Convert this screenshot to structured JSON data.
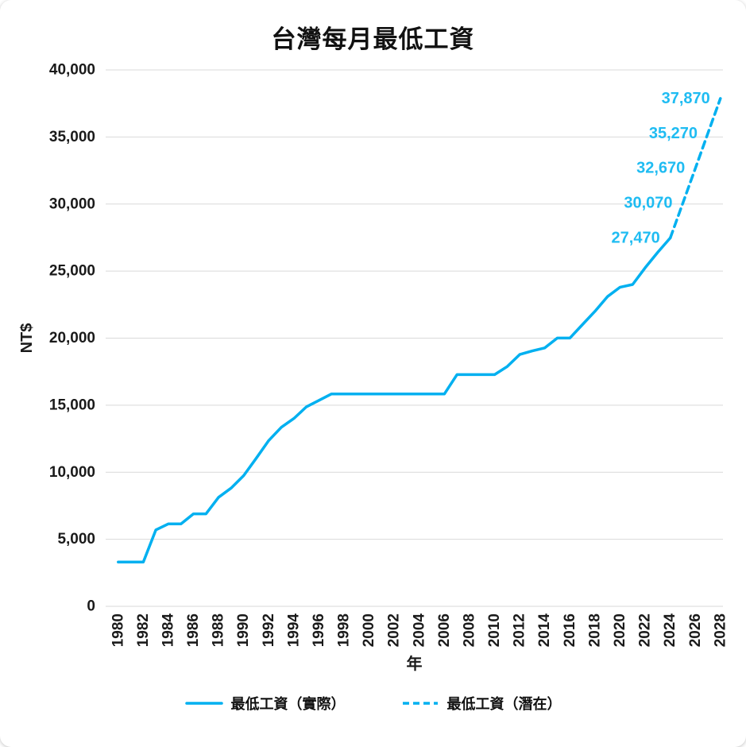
{
  "colors": {
    "line": "#00b0f0",
    "data_label": "#1fbcf2",
    "grid": "#d9d9d9",
    "text": "#1a1a1a"
  },
  "chart_data": {
    "type": "line",
    "title": "台灣每月最低工資",
    "xlabel": "年",
    "ylabel": "NT$",
    "xlim": [
      1979,
      2028.2
    ],
    "ylim": [
      0,
      40000
    ],
    "ytick_step": 5000,
    "xticks": [
      1980,
      1982,
      1984,
      1986,
      1988,
      1990,
      1992,
      1994,
      1996,
      1998,
      2000,
      2002,
      2004,
      2006,
      2008,
      2010,
      2012,
      2014,
      2016,
      2018,
      2020,
      2022,
      2024,
      2026,
      2028
    ],
    "grid": "horizontal",
    "legend_position": "bottom",
    "series": [
      {
        "name": "最低工資（實際）",
        "style": "solid",
        "x": [
          1980,
          1981,
          1982,
          1983,
          1984,
          1985,
          1986,
          1987,
          1988,
          1989,
          1990,
          1991,
          1992,
          1993,
          1994,
          1995,
          1996,
          1997,
          1998,
          1999,
          2000,
          2001,
          2002,
          2003,
          2004,
          2005,
          2006,
          2007,
          2008,
          2009,
          2010,
          2011,
          2012,
          2013,
          2014,
          2015,
          2016,
          2017,
          2018,
          2019,
          2020,
          2021,
          2022,
          2023,
          2024
        ],
        "y": [
          3300,
          3300,
          3300,
          5700,
          6150,
          6150,
          6900,
          6900,
          8130,
          8820,
          9750,
          11040,
          12365,
          13350,
          14010,
          14880,
          15360,
          15840,
          15840,
          15840,
          15840,
          15840,
          15840,
          15840,
          15840,
          15840,
          15840,
          17280,
          17280,
          17280,
          17280,
          17880,
          18780,
          19047,
          19273,
          20008,
          20008,
          21009,
          22000,
          23100,
          23800,
          24000,
          25250,
          26400,
          27470
        ]
      },
      {
        "name": "最低工資（潛在）",
        "style": "dashed",
        "x": [
          2024,
          2025,
          2026,
          2027,
          2028
        ],
        "y": [
          27470,
          30070,
          32670,
          35270,
          37870
        ],
        "point_labels": [
          "27,470",
          "30,070",
          "32,670",
          "35,270",
          "37,870"
        ]
      }
    ]
  }
}
